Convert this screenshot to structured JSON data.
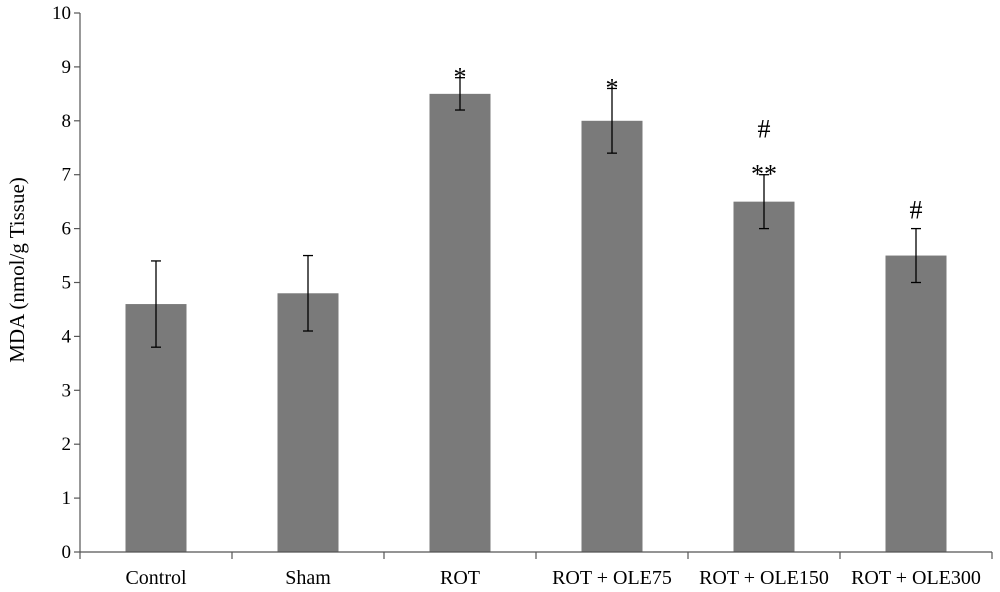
{
  "chart_data": {
    "type": "bar",
    "title": "",
    "xlabel": "",
    "ylabel": "MDA (nmol/g Tissue)",
    "ylim": [
      0,
      10
    ],
    "yticks": [
      0,
      1,
      2,
      3,
      4,
      5,
      6,
      7,
      8,
      9,
      10
    ],
    "grid": false,
    "bar_color": "#7a7a7a",
    "categories": [
      "Control",
      "Sham",
      "ROT",
      "ROT + OLE75",
      "ROT + OLE150",
      "ROT + OLE300"
    ],
    "values": [
      4.6,
      4.8,
      8.5,
      8.0,
      6.5,
      5.5
    ],
    "errors": [
      0.8,
      0.7,
      0.3,
      0.6,
      0.5,
      0.5
    ],
    "annotations": [
      [],
      [],
      [
        "*"
      ],
      [
        "*"
      ],
      [
        "#",
        "**"
      ],
      [
        "#"
      ]
    ]
  }
}
